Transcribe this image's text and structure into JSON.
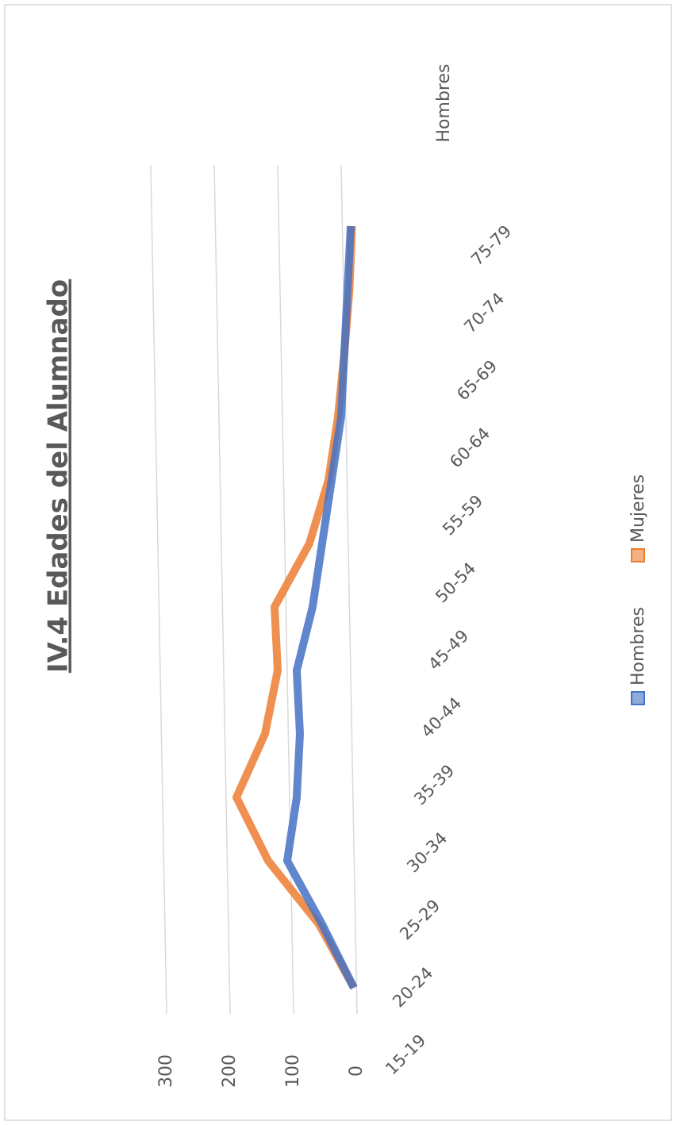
{
  "chart_data": {
    "type": "line",
    "title": "IV.4 Edades del Alumnado",
    "categories": [
      "15-19",
      "20-24",
      "25-29",
      "30-34",
      "35-39",
      "40-44",
      "45-49",
      "50-54",
      "55-59",
      "60-64",
      "65-69",
      "70-74",
      "75-79"
    ],
    "series": [
      {
        "name": "Hombres",
        "color": "#4472c4",
        "values": [
          5,
          55,
          110,
          95,
          90,
          95,
          70,
          55,
          40,
          25,
          20,
          15,
          10
        ]
      },
      {
        "name": "Mujeres",
        "color": "#ed7d31",
        "values": [
          5,
          60,
          140,
          190,
          145,
          125,
          130,
          75,
          45,
          30,
          20,
          12,
          8
        ]
      }
    ],
    "depth_labels": [
      "Hombres"
    ],
    "ylim": [
      0,
      300
    ],
    "yticks": [
      0,
      100,
      200,
      300
    ],
    "grid": true,
    "legend": "bottom"
  }
}
